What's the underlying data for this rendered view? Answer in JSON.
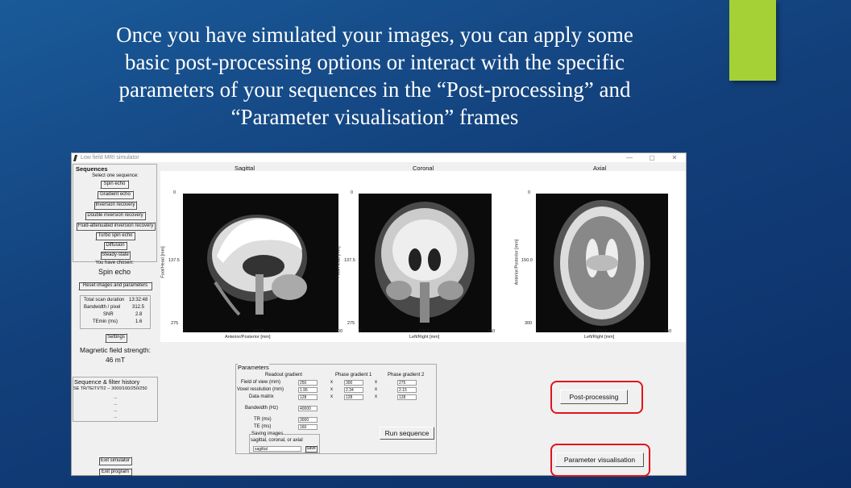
{
  "slide": {
    "lines": [
      "Once you have simulated your images, you can apply some",
      "basic post-processing options or interact with the specific",
      "parameters of your sequences in the “Post-processing” and",
      "“Parameter visualisation” frames"
    ],
    "accent_color": "#a6d136",
    "highlight_color": "#e0141b"
  },
  "window": {
    "title": "Low field MRI simulator",
    "controls": [
      "—",
      "▢",
      "✕"
    ]
  },
  "sidebar": {
    "sequences_title": "Sequences",
    "select_label": "Select one sequence:",
    "sequence_buttons": [
      "Spin echo",
      "Gradient echo",
      "Inversion recovery",
      "Double inversion recovery",
      "Fluid-attenuated inversion recovery",
      "Turbo spin echo",
      "Diffusion",
      "Steady-state"
    ],
    "chosen_label": "You have chosen:",
    "chosen_value": "Spin echo",
    "reset_button": "Reset images and parameters",
    "stats": [
      {
        "label": "Total scan duration",
        "value": "13:32:48"
      },
      {
        "label": "Bandwidth / pixel",
        "value": "312.5"
      },
      {
        "label": "SNR",
        "value": "2.8"
      },
      {
        "label": "TEmin (ms)",
        "value": "1.6"
      }
    ],
    "settings_button": "Settings",
    "field_strength_label": "Magnetic field strength:",
    "field_strength_value": "46 mT",
    "history_title": "Sequence & filter history",
    "history_entry": "SE TR/TE/TI/TI2 -- 3000/160/250/250",
    "history_dots": [
      "...",
      "...",
      "...",
      "..."
    ],
    "exit_simulator": "Exit simulator",
    "exit_program": "Exit program"
  },
  "plots": [
    {
      "title": "Sagittal",
      "y_ticks": [
        "0",
        "137.5",
        "275"
      ],
      "x_ticks": [
        "0",
        "150.0",
        "300"
      ],
      "xlabel": "Anterior/Posterior [mm]",
      "ylabel": "Foot/Head [mm]"
    },
    {
      "title": "Coronal",
      "y_ticks": [
        "0",
        "137.5",
        "275"
      ],
      "x_ticks": [
        "0",
        "125.0",
        "250"
      ],
      "xlabel": "Left/Right [mm]",
      "ylabel": "Foot/Head [mm]"
    },
    {
      "title": "Axial",
      "y_ticks": [
        "0",
        "150.0",
        "300"
      ],
      "x_ticks": [
        "0",
        "125.0",
        "250"
      ],
      "xlabel": "Left/Right [mm]",
      "ylabel": "Anterior/Posterior [mm]"
    }
  ],
  "parameters": {
    "title": "Parameters",
    "col_headers": [
      "Readout gradient",
      "Phase gradient 1",
      "Phase gradient 2"
    ],
    "rows": [
      {
        "label": "Field of view (mm)",
        "values": [
          "250",
          "300",
          "275"
        ]
      },
      {
        "label": "Voxel resolution (mm)",
        "values": [
          "1.95",
          "2.34",
          "2.15"
        ]
      },
      {
        "label": "Data matrix",
        "values": [
          "128",
          "128",
          "128"
        ]
      }
    ],
    "sep": "x",
    "bandwidth_label": "Bandwidth (Hz)",
    "bandwidth_value": "40000",
    "tr_label": "TR (ms)",
    "tr_value": "3000",
    "te_label": "TE (ms)",
    "te_value": "160",
    "saving_title": "Saving images",
    "saving_hint": "sagittal, coronal, or axial",
    "saving_value": "sagittal",
    "save_button": "Save",
    "run_button": "Run sequence"
  },
  "frames": {
    "post_processing": "Post-processing",
    "parameter_visualisation": "Parameter visualisation"
  }
}
